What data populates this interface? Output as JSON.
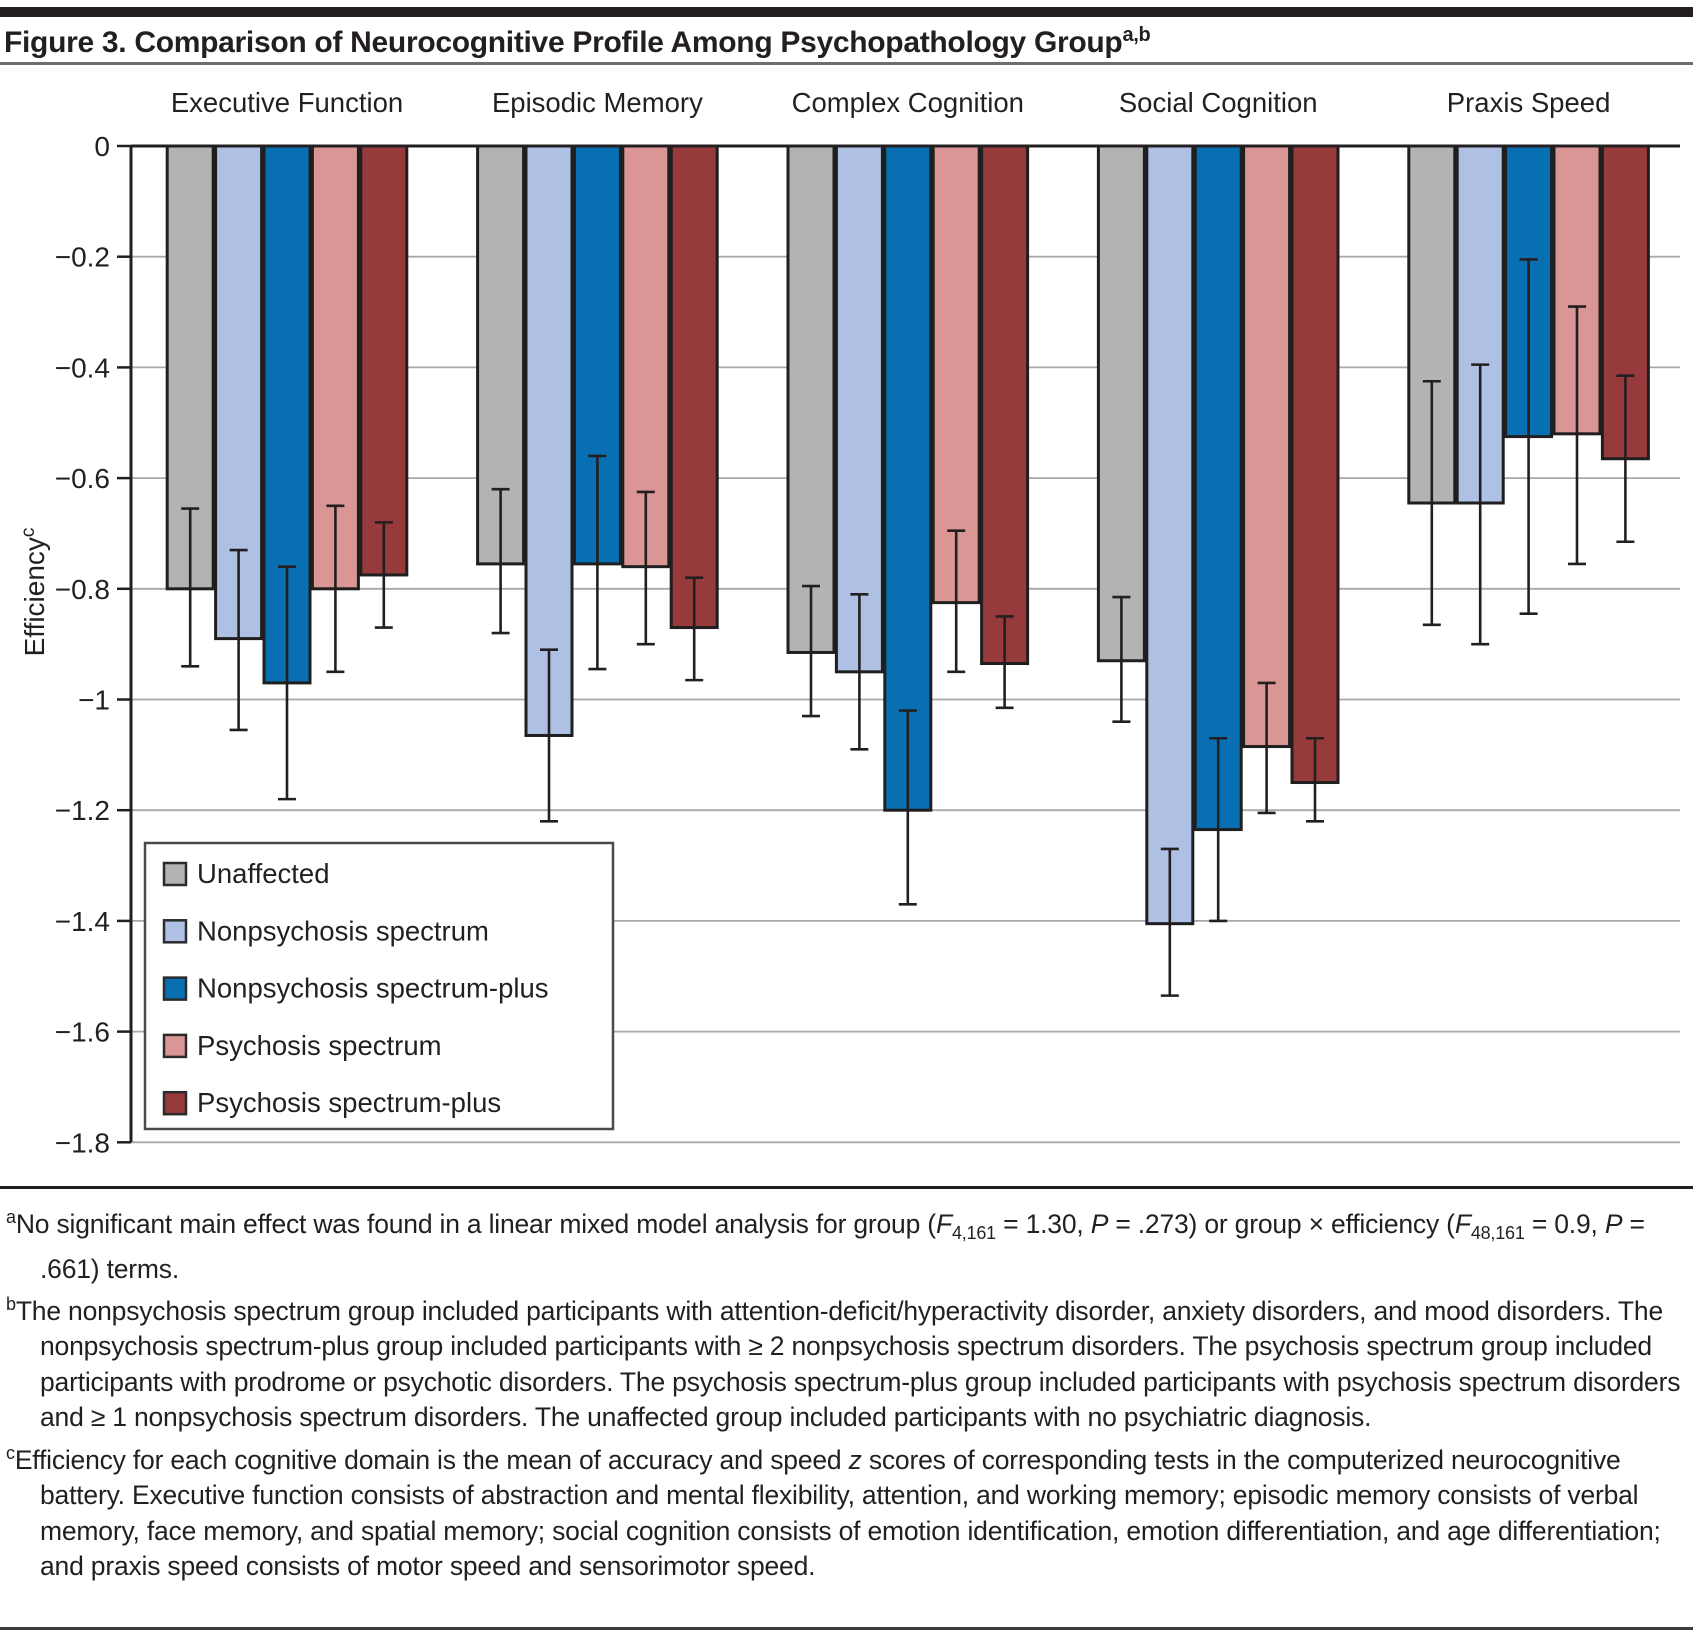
{
  "figure": {
    "title": "Figure 3. Comparison of Neurocognitive Profile Among Psychopathology Group",
    "title_superscript": "a,b"
  },
  "chart_data": {
    "type": "bar",
    "title": "Figure 3. Comparison of Neurocognitive Profile Among Psychopathology Group",
    "categories": [
      "Executive Function",
      "Episodic Memory",
      "Complex Cognition",
      "Social Cognition",
      "Praxis Speed"
    ],
    "series": [
      {
        "name": "Unaffected",
        "color": "#b3b3b1",
        "values": [
          -0.8,
          -0.755,
          -0.915,
          -0.93,
          -0.645
        ],
        "err_top": [
          -0.655,
          -0.62,
          -0.795,
          -0.815,
          -0.425
        ],
        "err_bottom": [
          -0.94,
          -0.88,
          -1.03,
          -1.04,
          -0.865
        ]
      },
      {
        "name": "Nonpsychosis spectrum",
        "color": "#aec1e4",
        "values": [
          -0.89,
          -1.065,
          -0.95,
          -1.405,
          -0.645
        ],
        "err_top": [
          -0.73,
          -0.91,
          -0.81,
          -1.27,
          -0.395
        ],
        "err_bottom": [
          -1.055,
          -1.22,
          -1.09,
          -1.535,
          -0.9
        ]
      },
      {
        "name": "Nonpsychosis spectrum-plus",
        "color": "#0870b2",
        "values": [
          -0.97,
          -0.755,
          -1.2,
          -1.235,
          -0.525
        ],
        "err_top": [
          -0.76,
          -0.56,
          -1.02,
          -1.07,
          -0.205
        ],
        "err_bottom": [
          -1.18,
          -0.945,
          -1.37,
          -1.4,
          -0.845
        ]
      },
      {
        "name": "Psychosis spectrum",
        "color": "#d99695",
        "values": [
          -0.8,
          -0.76,
          -0.825,
          -1.085,
          -0.52
        ],
        "err_top": [
          -0.65,
          -0.625,
          -0.695,
          -0.97,
          -0.29
        ],
        "err_bottom": [
          -0.95,
          -0.9,
          -0.95,
          -1.205,
          -0.755
        ]
      },
      {
        "name": "Psychosis spectrum-plus",
        "color": "#973a3b",
        "values": [
          -0.775,
          -0.87,
          -0.935,
          -1.15,
          -0.565
        ],
        "err_top": [
          -0.68,
          -0.78,
          -0.85,
          -1.07,
          -0.415
        ],
        "err_bottom": [
          -0.87,
          -0.965,
          -1.015,
          -1.22,
          -0.715
        ]
      }
    ],
    "xlabel": "",
    "ylabel": "Efficiency",
    "ylabel_superscript": "c",
    "ylim": [
      -1.8,
      0
    ],
    "yticks": [
      0,
      -0.2,
      -0.4,
      -0.6,
      -0.8,
      -1,
      -1.2,
      -1.4,
      -1.6,
      -1.8
    ],
    "ytick_labels": [
      "0",
      "−0.2",
      "−0.4",
      "−0.6",
      "−0.8",
      "−1",
      "−1.2",
      "−1.4",
      "−1.6",
      "−1.8"
    ],
    "grid": true,
    "legend_position": "inside-bottom-left",
    "legend_labels": [
      "Unaffected",
      "Nonpsychosis spectrum",
      "Nonpsychosis spectrum-plus",
      "Psychosis spectrum",
      "Psychosis spectrum-plus"
    ],
    "bar_outline_color": "#1f1f1f",
    "error_bar_color": "#231f20",
    "gridline_color": "#a9a9a9",
    "axis_color": "#231f20"
  },
  "footnotes": [
    {
      "marker": "a",
      "segments": [
        {
          "t": "No significant main effect was found in a linear mixed model analysis for group ("
        },
        {
          "t": "F",
          "i": true
        },
        {
          "t": "4,161",
          "sub": true
        },
        {
          "t": " = 1.30, "
        },
        {
          "t": "P",
          "i": true
        },
        {
          "t": " = .273) or group × efficiency ("
        },
        {
          "t": "F",
          "i": true
        },
        {
          "t": "48,161",
          "sub": true
        },
        {
          "t": " = 0.9, "
        },
        {
          "t": "P",
          "i": true
        },
        {
          "t": " = .661) terms."
        }
      ]
    },
    {
      "marker": "b",
      "segments": [
        {
          "t": "The nonpsychosis spectrum group included participants with attention-deficit/hyperactivity disorder, anxiety disorders, and mood disorders. The nonpsychosis spectrum-plus group included participants with ≥ 2 nonpsychosis spectrum disorders. The psychosis spectrum group included participants with prodrome or psychotic disorders. The psychosis spectrum-plus group included participants with psychosis spectrum disorders and ≥ 1 nonpsychosis spectrum disorders. The unaffected group included participants with no psychiatric diagnosis."
        }
      ]
    },
    {
      "marker": "c",
      "segments": [
        {
          "t": "Efficiency for each cognitive domain is the mean of accuracy and speed "
        },
        {
          "t": "z",
          "i": true
        },
        {
          "t": " scores of corresponding tests in the computerized neurocognitive battery. Executive function consists of abstraction and mental flexibility, attention, and working memory; episodic memory consists of verbal memory, face memory, and spatial memory; social cognition consists of emotion identification,  emotion differentiation, and age differentiation; and praxis speed consists of motor speed and sensorimotor speed."
        }
      ]
    }
  ]
}
